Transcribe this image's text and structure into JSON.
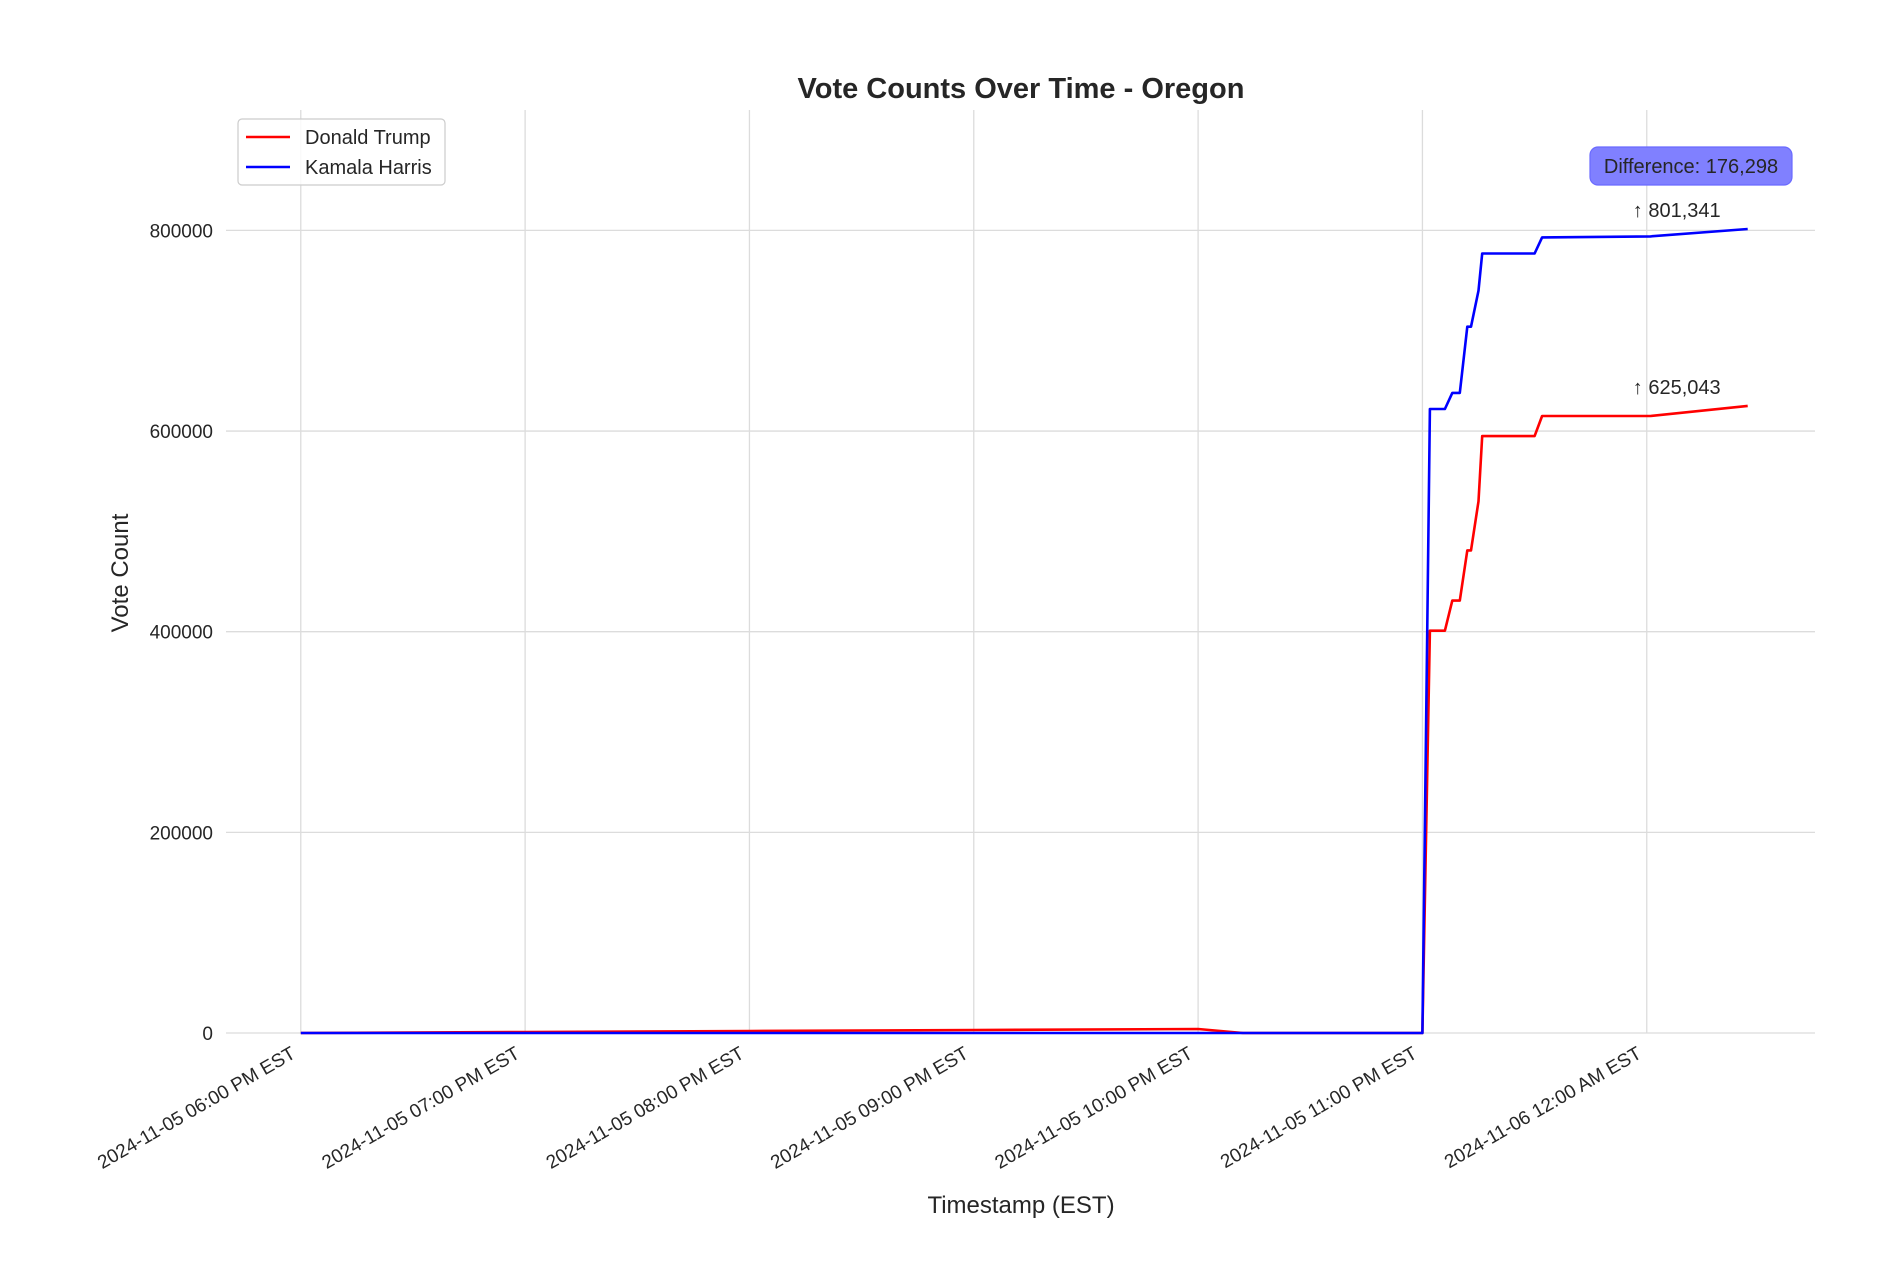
{
  "chart_data": {
    "type": "line",
    "title": "Vote Counts Over Time - Oregon",
    "xlabel": "Timestamp (EST)",
    "ylabel": "Vote Count",
    "x_type": "datetime",
    "xlim": [
      "2024-11-05 17:40",
      "2024-11-06 00:45"
    ],
    "ylim": [
      0,
      920000
    ],
    "x_ticks": [
      {
        "t": "2024-11-05 18:00",
        "label": "2024-11-05 06:00 PM EST"
      },
      {
        "t": "2024-11-05 19:00",
        "label": "2024-11-05 07:00 PM EST"
      },
      {
        "t": "2024-11-05 20:00",
        "label": "2024-11-05 08:00 PM EST"
      },
      {
        "t": "2024-11-05 21:00",
        "label": "2024-11-05 09:00 PM EST"
      },
      {
        "t": "2024-11-05 22:00",
        "label": "2024-11-05 10:00 PM EST"
      },
      {
        "t": "2024-11-05 23:00",
        "label": "2024-11-05 11:00 PM EST"
      },
      {
        "t": "2024-11-06 00:00",
        "label": "2024-11-06 12:00 AM EST"
      }
    ],
    "y_ticks": [
      {
        "v": 0,
        "label": "0"
      },
      {
        "v": 200000,
        "label": "200000"
      },
      {
        "v": 400000,
        "label": "400000"
      },
      {
        "v": 600000,
        "label": "600000"
      },
      {
        "v": 800000,
        "label": "800000"
      }
    ],
    "grid": true,
    "legend_position": "upper-left",
    "series": [
      {
        "name": "Donald Trump",
        "color": "#ff0000",
        "points": [
          [
            "2024-11-05 18:00",
            0
          ],
          [
            "2024-11-05 19:00",
            1000
          ],
          [
            "2024-11-05 20:00",
            2000
          ],
          [
            "2024-11-05 21:00",
            3000
          ],
          [
            "2024-11-05 22:00",
            4000
          ],
          [
            "2024-11-05 22:12",
            0
          ],
          [
            "2024-11-05 23:00",
            0
          ],
          [
            "2024-11-05 23:02",
            401000
          ],
          [
            "2024-11-05 23:06",
            401000
          ],
          [
            "2024-11-05 23:08",
            431000
          ],
          [
            "2024-11-05 23:10",
            431000
          ],
          [
            "2024-11-05 23:12",
            481000
          ],
          [
            "2024-11-05 23:13",
            481000
          ],
          [
            "2024-11-05 23:15",
            530000
          ],
          [
            "2024-11-05 23:16",
            595000
          ],
          [
            "2024-11-05 23:30",
            595000
          ],
          [
            "2024-11-05 23:32",
            615000
          ],
          [
            "2024-11-06 00:01",
            615000
          ],
          [
            "2024-11-06 00:27",
            625043
          ]
        ]
      },
      {
        "name": "Kamala Harris",
        "color": "#0000ff",
        "points": [
          [
            "2024-11-05 18:00",
            0
          ],
          [
            "2024-11-05 19:00",
            0
          ],
          [
            "2024-11-05 20:00",
            0
          ],
          [
            "2024-11-05 21:00",
            0
          ],
          [
            "2024-11-05 22:00",
            0
          ],
          [
            "2024-11-05 22:12",
            0
          ],
          [
            "2024-11-05 23:00",
            0
          ],
          [
            "2024-11-05 23:02",
            622000
          ],
          [
            "2024-11-05 23:06",
            622000
          ],
          [
            "2024-11-05 23:08",
            638000
          ],
          [
            "2024-11-05 23:10",
            638000
          ],
          [
            "2024-11-05 23:12",
            704000
          ],
          [
            "2024-11-05 23:13",
            704000
          ],
          [
            "2024-11-05 23:15",
            740000
          ],
          [
            "2024-11-05 23:16",
            777000
          ],
          [
            "2024-11-05 23:30",
            777000
          ],
          [
            "2024-11-05 23:32",
            793000
          ],
          [
            "2024-11-06 00:01",
            794000
          ],
          [
            "2024-11-06 00:27",
            801341
          ]
        ]
      }
    ],
    "annotations": [
      {
        "text": "↑ 801,341",
        "series": "Kamala Harris"
      },
      {
        "text": "↑ 625,043",
        "series": "Donald Trump"
      }
    ],
    "difference_box": {
      "text": "Difference: 176,298",
      "fill": "#8080ff",
      "border": "#6a6aff"
    }
  }
}
